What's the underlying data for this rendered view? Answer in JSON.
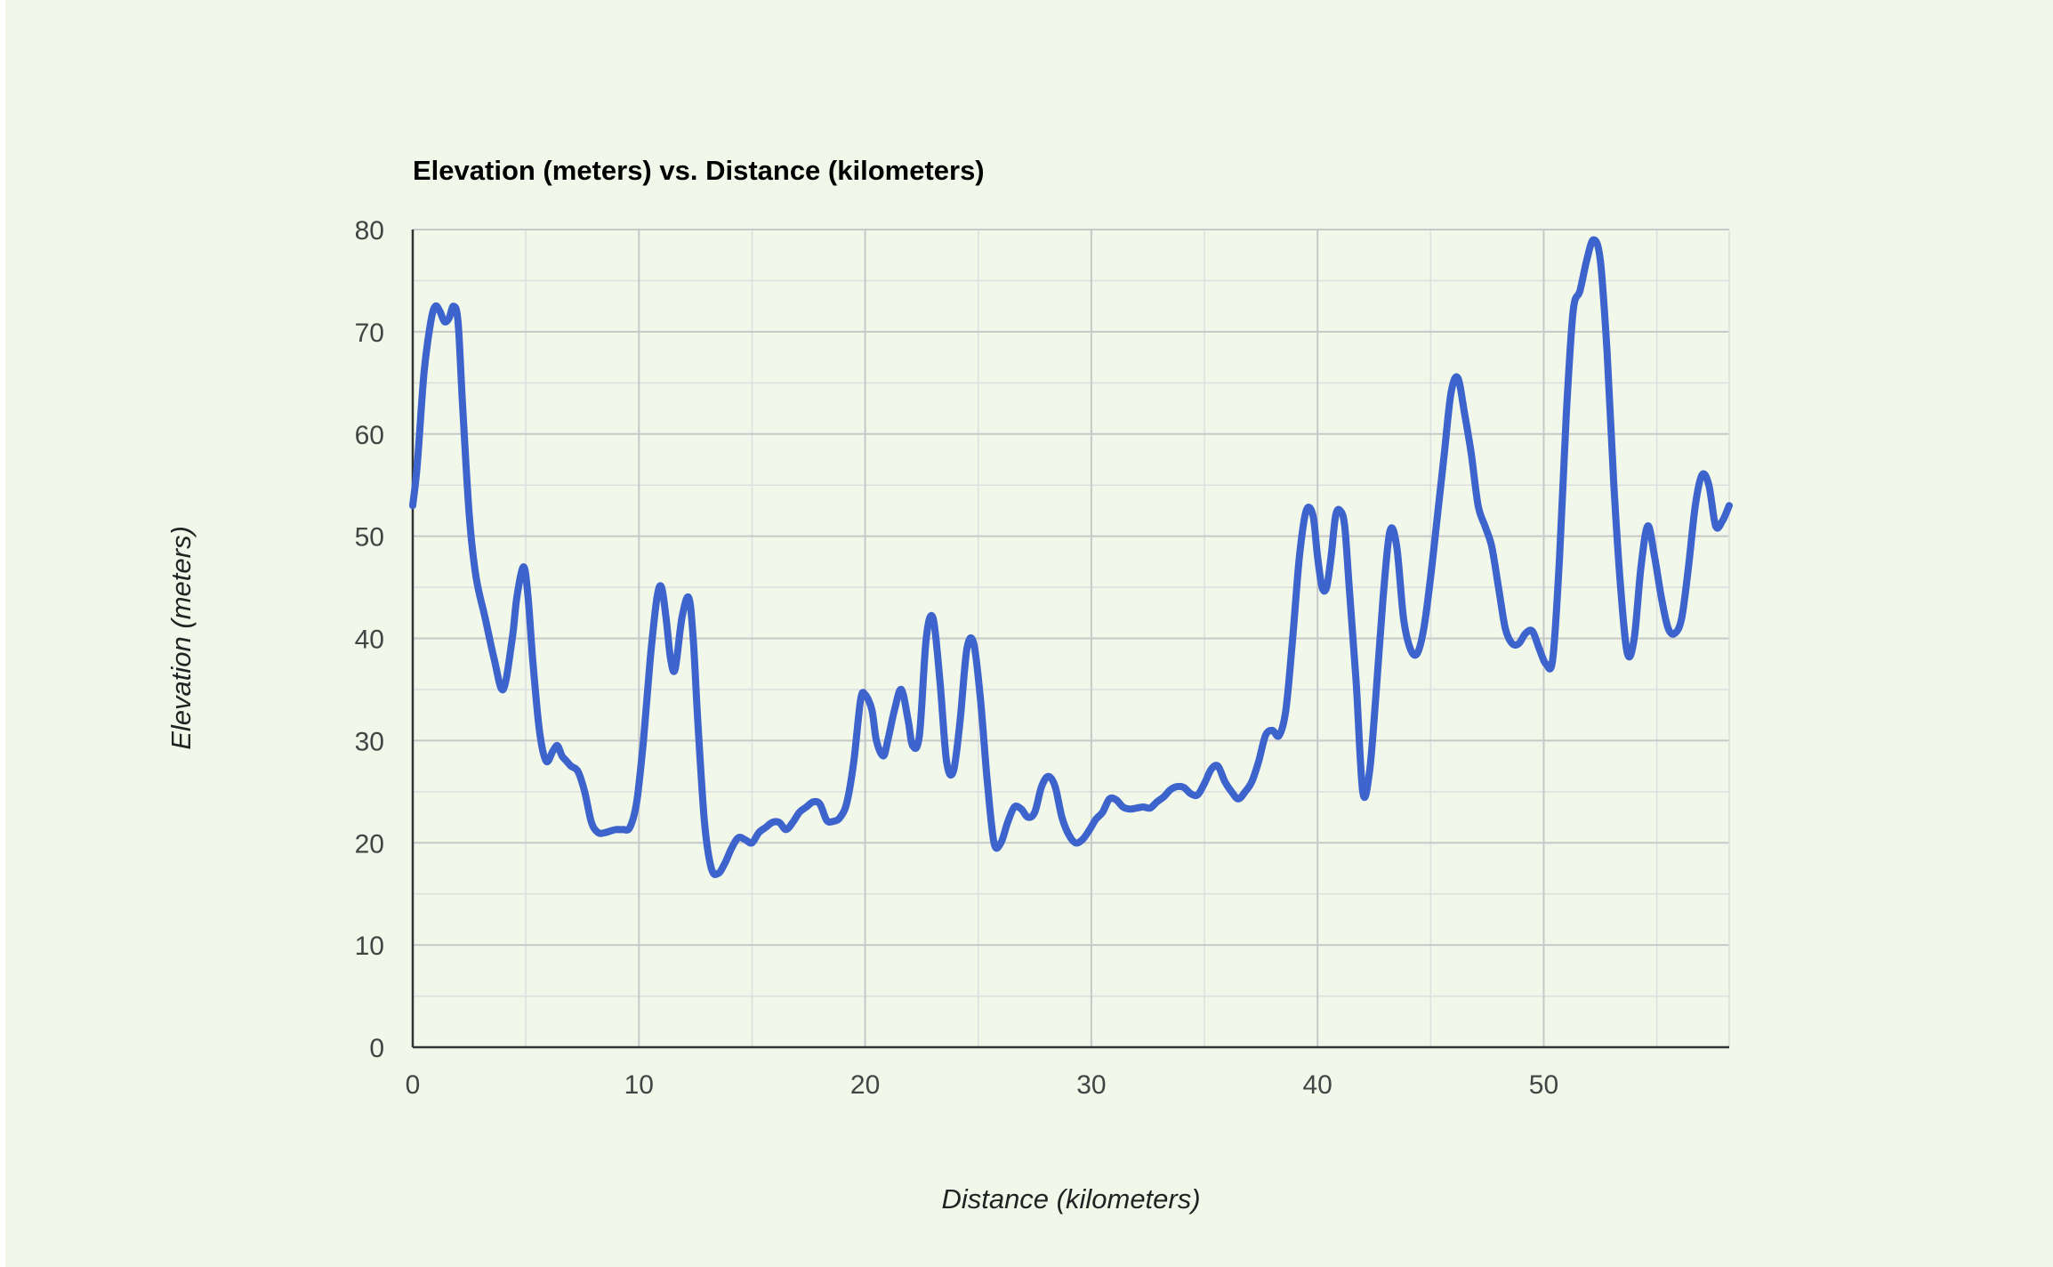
{
  "colors": {
    "page_background": "#ffffff",
    "chart_background": "#f1f8ea",
    "major_grid": "#c8c8c8",
    "minor_grid": "#dedede",
    "axis_line": "#333333",
    "line": "#3d63cc"
  },
  "chart_data": {
    "type": "line",
    "title": "Elevation (meters) vs. Distance (kilometers)",
    "xlabel": "Distance (kilometers)",
    "ylabel": "Elevation (meters)",
    "xlim": [
      0,
      58.2
    ],
    "ylim": [
      0,
      80
    ],
    "x_ticks": [
      0,
      10,
      20,
      30,
      40,
      50
    ],
    "y_ticks": [
      0,
      10,
      20,
      30,
      40,
      50,
      60,
      70,
      80
    ],
    "x_minor_step": 5,
    "y_minor_step": 5,
    "grid": true,
    "legend": "none",
    "series": [
      {
        "x": [
          0,
          0.2,
          0.5,
          0.8,
          1.0,
          1.2,
          1.4,
          1.6,
          1.8,
          2.0,
          2.2,
          2.5,
          2.8,
          3.2,
          3.6,
          4.0,
          4.4,
          4.6,
          4.9,
          5.1,
          5.3,
          5.6,
          5.9,
          6.2,
          6.4,
          6.6,
          6.8,
          7.0,
          7.3,
          7.6,
          7.9,
          8.2,
          8.5,
          8.8,
          9.0,
          9.3,
          9.6,
          9.9,
          10.2,
          10.5,
          10.8,
          11.0,
          11.2,
          11.4,
          11.6,
          11.9,
          12.2,
          12.4,
          12.6,
          12.9,
          13.2,
          13.5,
          13.8,
          14.1,
          14.4,
          14.7,
          15.0,
          15.3,
          15.6,
          15.9,
          16.2,
          16.5,
          16.8,
          17.1,
          17.4,
          17.7,
          18.0,
          18.3,
          18.6,
          18.9,
          19.2,
          19.5,
          19.8,
          20.0,
          20.3,
          20.5,
          20.8,
          21.0,
          21.3,
          21.6,
          21.9,
          22.1,
          22.4,
          22.7,
          23.0,
          23.3,
          23.6,
          23.9,
          24.2,
          24.5,
          24.8,
          25.1,
          25.4,
          25.7,
          26.0,
          26.3,
          26.6,
          26.9,
          27.2,
          27.5,
          27.8,
          28.1,
          28.4,
          28.7,
          29.0,
          29.3,
          29.6,
          29.9,
          30.2,
          30.5,
          30.8,
          31.1,
          31.4,
          31.7,
          32.0,
          32.3,
          32.6,
          32.9,
          33.2,
          33.5,
          33.8,
          34.1,
          34.4,
          34.7,
          35.0,
          35.3,
          35.6,
          35.9,
          36.2,
          36.5,
          36.8,
          37.1,
          37.4,
          37.7,
          38.0,
          38.3,
          38.6,
          38.9,
          39.2,
          39.5,
          39.8,
          40.0,
          40.2,
          40.4,
          40.6,
          40.8,
          41.0,
          41.2,
          41.4,
          41.7,
          42.0,
          42.3,
          42.6,
          42.9,
          43.2,
          43.5,
          43.8,
          44.1,
          44.4,
          44.7,
          45.0,
          45.3,
          45.6,
          45.9,
          46.2,
          46.5,
          46.8,
          47.1,
          47.4,
          47.7,
          48.0,
          48.3,
          48.6,
          48.9,
          49.2,
          49.5,
          49.8,
          50.1,
          50.4,
          50.7,
          51.0,
          51.3,
          51.6,
          51.9,
          52.2,
          52.5,
          52.8,
          53.1,
          53.4,
          53.7,
          54.0,
          54.3,
          54.6,
          54.9,
          55.2,
          55.5,
          55.8,
          56.1,
          56.4,
          56.7,
          57.0,
          57.3,
          57.6,
          57.9,
          58.2
        ],
        "y": [
          53,
          57,
          66,
          71,
          72.5,
          72,
          71,
          71.3,
          72.5,
          71,
          63,
          52,
          46,
          42,
          38,
          35,
          40,
          44,
          47,
          44,
          38,
          31,
          28,
          29,
          29.5,
          28.5,
          28,
          27.5,
          27,
          25,
          22,
          21,
          21,
          21.2,
          21.3,
          21.3,
          21.5,
          24,
          30,
          38,
          44,
          45,
          42,
          38,
          37,
          42,
          44,
          40,
          32,
          22,
          17.5,
          17,
          18,
          19.5,
          20.5,
          20.3,
          20,
          21,
          21.5,
          22,
          22,
          21.3,
          22,
          23,
          23.5,
          24,
          23.8,
          22.2,
          22.1,
          22.5,
          24,
          28,
          34,
          34.5,
          33,
          30,
          28.5,
          30,
          33,
          35,
          32,
          29.5,
          30.5,
          40,
          42,
          36,
          28,
          27,
          32,
          39,
          39.5,
          34,
          26,
          20,
          20,
          22,
          23.5,
          23.3,
          22.5,
          23,
          25.5,
          26.5,
          25.5,
          22.5,
          20.8,
          20,
          20.3,
          21.2,
          22.3,
          23,
          24.3,
          24.2,
          23.5,
          23.3,
          23.4,
          23.5,
          23.4,
          24,
          24.5,
          25.2,
          25.5,
          25.4,
          24.8,
          24.7,
          25.8,
          27.2,
          27.5,
          26,
          25,
          24.3,
          25,
          26,
          28,
          30.5,
          31,
          30.5,
          33,
          40,
          48,
          52.5,
          52,
          48,
          45,
          45,
          48,
          52,
          52.5,
          51,
          45,
          36,
          25,
          27,
          35,
          44,
          50.5,
          49,
          42,
          39,
          38.5,
          41,
          46,
          52,
          58,
          64,
          65.5,
          62,
          58,
          53,
          51,
          49,
          45,
          41,
          39.5,
          39.5,
          40.5,
          40.7,
          39,
          37.5,
          38,
          48,
          62,
          72,
          74,
          77,
          79,
          77,
          68,
          55,
          45,
          38.5,
          40,
          47,
          51,
          48,
          44,
          41,
          40.5,
          42,
          47,
          53,
          56,
          55,
          51,
          51.5,
          53
        ]
      }
    ]
  }
}
